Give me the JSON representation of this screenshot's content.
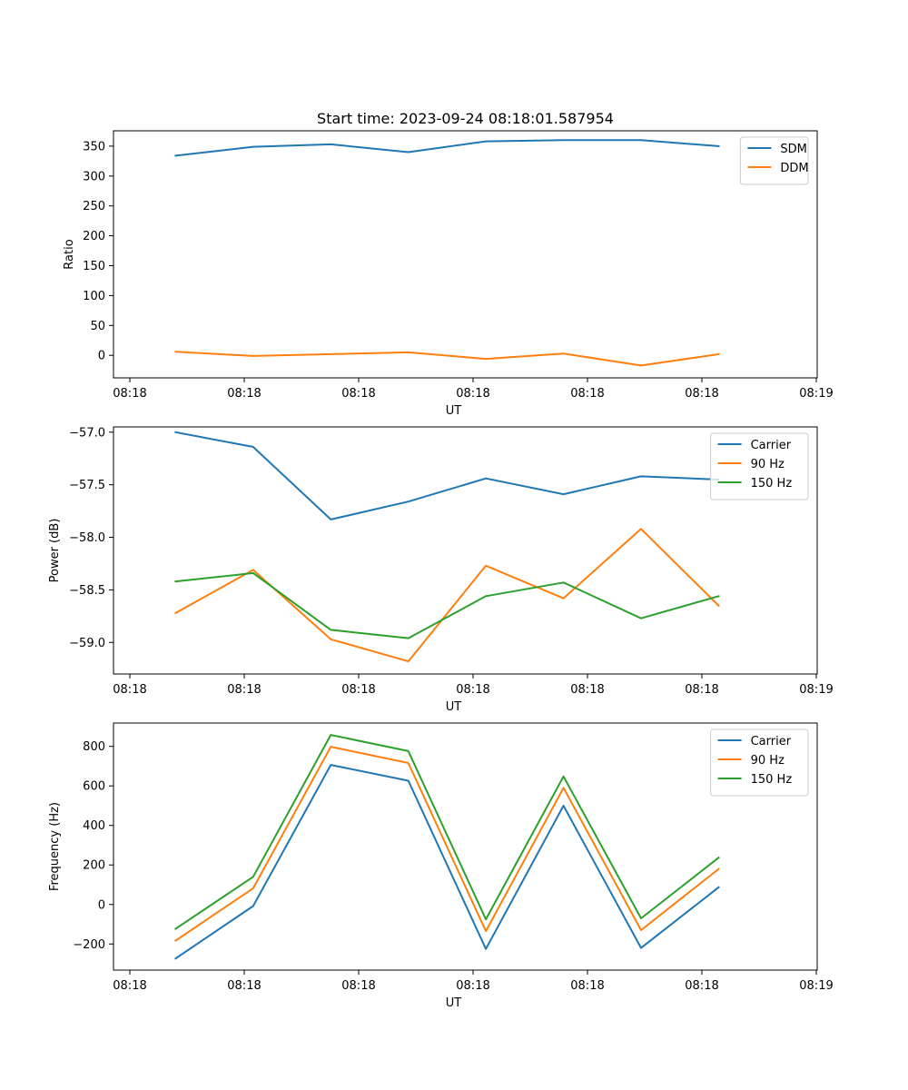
{
  "figure": {
    "title": "Start time: 2023-09-24 08:18:01.587954",
    "series_colors": {
      "blue": "#1f77b4",
      "orange": "#ff7f0e",
      "green": "#2ca02c"
    }
  },
  "chart_data": [
    {
      "type": "line",
      "title": "Start time: 2023-09-24 08:18:01.587954",
      "xlabel": "UT",
      "ylabel": "Ratio",
      "x_tick_labels": [
        "08:18",
        "08:18",
        "08:18",
        "08:18",
        "08:18",
        "08:18",
        "08:19"
      ],
      "x": [
        1,
        2,
        3,
        4,
        5,
        6,
        7,
        8
      ],
      "xlim": [
        0.2,
        9.27
      ],
      "ylim": [
        -37.7,
        375.7
      ],
      "y_ticks": [
        0,
        50,
        100,
        150,
        200,
        250,
        300,
        350
      ],
      "legend_position": "upper right",
      "series": [
        {
          "name": "SDM",
          "color": "#1f77b4",
          "values": [
            334,
            349,
            353,
            340,
            358,
            360,
            360,
            350
          ]
        },
        {
          "name": "DDM",
          "color": "#ff7f0e",
          "values": [
            6,
            -1,
            2,
            5,
            -6,
            3,
            -17,
            2
          ]
        }
      ]
    },
    {
      "type": "line",
      "title": "",
      "xlabel": "UT",
      "ylabel": "Power (dB)",
      "x_tick_labels": [
        "08:18",
        "08:18",
        "08:18",
        "08:18",
        "08:18",
        "08:18",
        "08:19"
      ],
      "x": [
        1,
        2,
        3,
        4,
        5,
        6,
        7,
        8
      ],
      "xlim": [
        0.2,
        9.27
      ],
      "ylim": [
        -59.3,
        -56.95
      ],
      "y_ticks": [
        -59.0,
        -58.5,
        -58.0,
        -57.5,
        -57.0
      ],
      "legend_position": "upper right",
      "series": [
        {
          "name": "Carrier",
          "color": "#1f77b4",
          "values": [
            -57.0,
            -57.14,
            -57.83,
            -57.66,
            -57.44,
            -57.59,
            -57.42,
            -57.45
          ]
        },
        {
          "name": "90 Hz",
          "color": "#ff7f0e",
          "values": [
            -58.72,
            -58.31,
            -58.97,
            -59.18,
            -58.27,
            -58.58,
            -57.92,
            -58.65
          ]
        },
        {
          "name": "150 Hz",
          "color": "#2ca02c",
          "values": [
            -58.42,
            -58.34,
            -58.88,
            -58.96,
            -58.56,
            -58.43,
            -58.77,
            -58.56
          ]
        }
      ]
    },
    {
      "type": "line",
      "title": "",
      "xlabel": "UT",
      "ylabel": "Frequency (Hz)",
      "x_tick_labels": [
        "08:18",
        "08:18",
        "08:18",
        "08:18",
        "08:18",
        "08:18",
        "08:19"
      ],
      "x": [
        1,
        2,
        3,
        4,
        5,
        6,
        7,
        8
      ],
      "xlim": [
        0.2,
        9.27
      ],
      "ylim": [
        -332,
        918
      ],
      "y_ticks": [
        -200,
        0,
        200,
        400,
        600,
        800
      ],
      "legend_position": "upper right",
      "series": [
        {
          "name": "Carrier",
          "color": "#1f77b4",
          "values": [
            -273,
            -8,
            706,
            626,
            -225,
            500,
            -220,
            87
          ]
        },
        {
          "name": "90 Hz",
          "color": "#ff7f0e",
          "values": [
            -183,
            82,
            798,
            716,
            -135,
            590,
            -130,
            180
          ]
        },
        {
          "name": "150 Hz",
          "color": "#2ca02c",
          "values": [
            -123,
            140,
            858,
            776,
            -75,
            648,
            -70,
            237
          ]
        }
      ]
    }
  ]
}
